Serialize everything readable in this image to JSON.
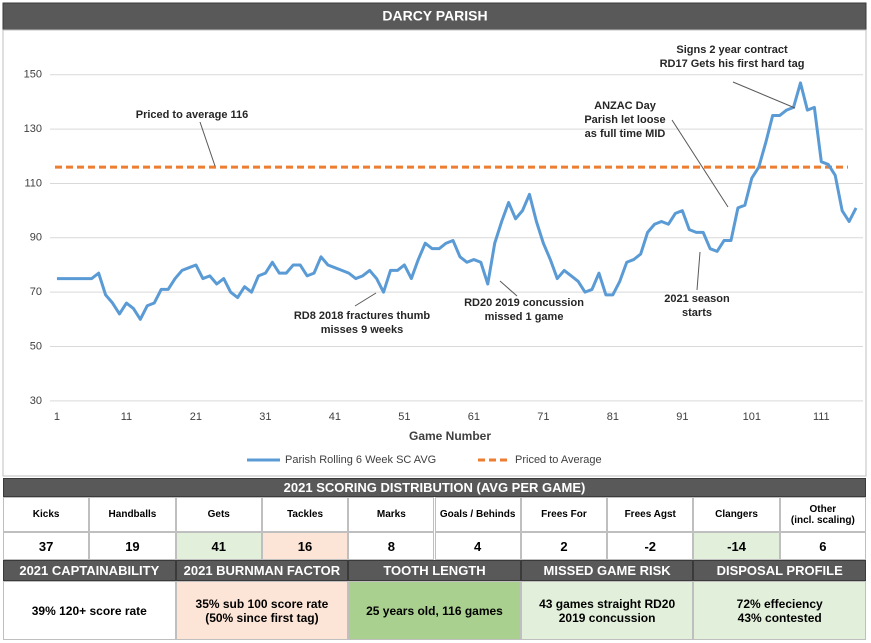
{
  "chart_data": {
    "type": "line",
    "title": "DARCY PARISH",
    "x_label": "Game Number",
    "x": [
      1,
      2,
      3,
      4,
      5,
      6,
      7,
      8,
      9,
      10,
      11,
      12,
      13,
      14,
      15,
      16,
      17,
      18,
      19,
      20,
      21,
      22,
      23,
      24,
      25,
      26,
      27,
      28,
      29,
      30,
      31,
      32,
      33,
      34,
      35,
      36,
      37,
      38,
      39,
      40,
      41,
      42,
      43,
      44,
      45,
      46,
      47,
      48,
      49,
      50,
      51,
      52,
      53,
      54,
      55,
      56,
      57,
      58,
      59,
      60,
      61,
      62,
      63,
      64,
      65,
      66,
      67,
      68,
      69,
      70,
      71,
      72,
      73,
      74,
      75,
      76,
      77,
      78,
      79,
      80,
      81,
      82,
      83,
      84,
      85,
      86,
      87,
      88,
      89,
      90,
      91,
      92,
      93,
      94,
      95,
      96,
      97,
      98,
      99,
      100,
      101,
      102,
      103,
      104,
      105,
      106,
      107,
      108,
      109,
      110,
      111,
      112,
      113,
      114,
      115,
      116
    ],
    "series": [
      {
        "name": "Parish Rolling 6 Week SC AVG",
        "color": "#5b9bd5",
        "values": [
          75,
          75,
          75,
          75,
          75,
          75,
          77,
          69,
          66,
          62,
          66,
          64,
          60,
          65,
          66,
          71,
          71,
          75,
          78,
          79,
          80,
          75,
          76,
          73,
          75,
          70,
          68,
          72,
          70,
          76,
          77,
          81,
          77,
          77,
          80,
          80,
          76,
          77,
          83,
          80,
          79,
          78,
          77,
          75,
          76,
          78,
          75,
          70,
          78,
          78,
          80,
          75,
          82,
          88,
          86,
          86,
          88,
          89,
          83,
          81,
          82,
          81,
          73,
          88,
          96,
          103,
          97,
          100,
          106,
          96,
          88,
          82,
          75,
          78,
          76,
          74,
          70,
          71,
          77,
          69,
          69,
          74,
          81,
          82,
          84,
          92,
          95,
          96,
          95,
          99,
          100,
          93,
          92,
          92,
          86,
          85,
          89,
          89,
          101,
          102,
          112,
          116,
          125,
          135,
          135,
          137,
          138,
          147,
          137,
          138,
          118,
          117,
          113,
          100,
          96,
          101
        ]
      }
    ],
    "reference_line": {
      "name": "Priced to Average",
      "value": 116,
      "color": "#ed7d31"
    },
    "xlim": [
      0,
      117
    ],
    "xticks": [
      1,
      11,
      21,
      31,
      41,
      51,
      61,
      71,
      81,
      91,
      101,
      111
    ],
    "ylim": [
      27,
      165
    ],
    "yticks": [
      30,
      50,
      70,
      90,
      110,
      130,
      150
    ],
    "grid": true,
    "annotations": [
      [
        "Priced to average 116"
      ],
      [
        "RD8 2018 fractures thumb",
        "misses 9 weeks"
      ],
      [
        "RD20 2019 concussion",
        "missed 1 game"
      ],
      [
        "2021 season",
        "starts"
      ],
      [
        "ANZAC Day",
        "Parish let loose",
        "as full time MID"
      ],
      [
        "Signs 2 year contract",
        "RD17 Gets his first hard tag"
      ]
    ]
  },
  "distribution": {
    "title": "2021 SCORING DISTRIBUTION (AVG PER GAME)",
    "items": [
      {
        "label": "Kicks",
        "value": 37
      },
      {
        "label": "Handballs",
        "value": 19
      },
      {
        "label": "Gets",
        "value": 41,
        "color": "#e2efda"
      },
      {
        "label": "Tackles",
        "value": 16,
        "color": "#fce4d6"
      },
      {
        "label": "Marks",
        "value": 8
      },
      {
        "label": "Goals / Behinds",
        "value": 4
      },
      {
        "label": "Frees For",
        "value": 2
      },
      {
        "label": "Frees Agst",
        "value": -2
      },
      {
        "label": "Clangers",
        "value": -14,
        "color": "#e2efda"
      },
      {
        "label": "Other\n(incl. scaling)",
        "value": 6
      }
    ]
  },
  "profile": [
    {
      "title": "2021 CAPTAINABILITY",
      "text": "39% 120+ score rate"
    },
    {
      "title": "2021 BURNMAN FACTOR",
      "text": "35% sub 100 score rate\n(50% since first tag)",
      "color": "#fce4d6"
    },
    {
      "title": "TOOTH LENGTH",
      "text": "25 years old, 116 games",
      "color": "#a9d08e"
    },
    {
      "title": "MISSED GAME RISK",
      "text": "43 games straight RD20 2019 concussion",
      "color": "#e2efda"
    },
    {
      "title": "DISPOSAL PROFILE",
      "text": "72% effeciency\n43% contested",
      "color": "#e2efda"
    }
  ]
}
